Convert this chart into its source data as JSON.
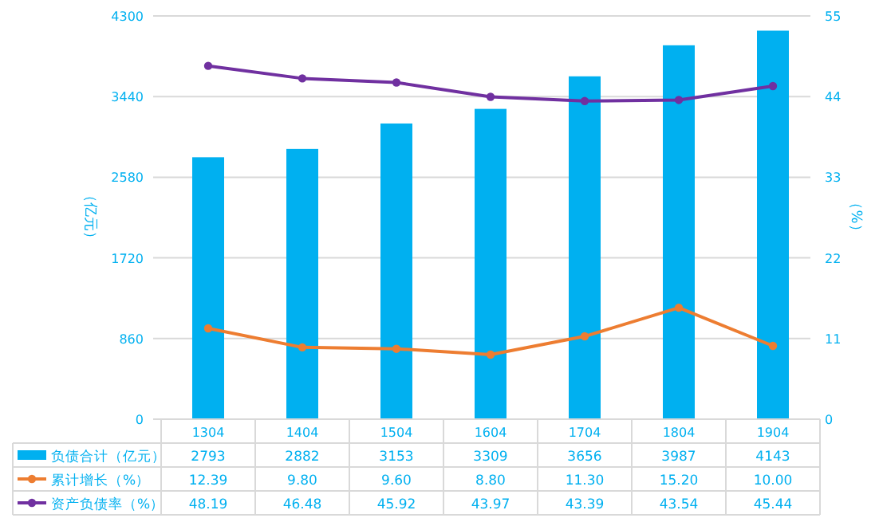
{
  "chart_data": {
    "type": "bar",
    "categories": [
      "1304",
      "1404",
      "1504",
      "1604",
      "1704",
      "1804",
      "1904"
    ],
    "ylabel": "（亿元）",
    "y2label": "（%）",
    "ylim": [
      0,
      4300
    ],
    "yticks": [
      0,
      860,
      1720,
      2580,
      3440,
      4300
    ],
    "y2lim": [
      0,
      55
    ],
    "y2ticks": [
      0,
      11,
      22,
      33,
      44,
      55
    ],
    "grid": "y",
    "legend": "bottom",
    "series": [
      {
        "name": "负债合计（亿元）",
        "color": "#00b0f0",
        "values": [
          2793,
          2882,
          3153,
          3309,
          3656,
          3987,
          4143
        ],
        "value_labels": [
          "2793",
          "2882",
          "3153",
          "3309",
          "3656",
          "3987",
          "4143"
        ]
      },
      {
        "name": "累计增长（%）",
        "type": "line",
        "axis": "y2",
        "marker": "circle",
        "color": "#ed7d31",
        "values": [
          12.39,
          9.8,
          9.6,
          8.8,
          11.3,
          15.2,
          10.0
        ],
        "value_labels": [
          "12.39",
          "9.80",
          "9.60",
          "8.80",
          "11.30",
          "15.20",
          "10.00"
        ]
      },
      {
        "name": "资产负债率（%）",
        "type": "line",
        "axis": "y2",
        "marker": "circle",
        "color": "#7030a0",
        "values": [
          48.19,
          46.48,
          45.92,
          43.97,
          43.39,
          43.54,
          45.44
        ],
        "value_labels": [
          "48.19",
          "46.48",
          "45.92",
          "43.97",
          "43.39",
          "43.54",
          "45.44"
        ]
      }
    ]
  }
}
